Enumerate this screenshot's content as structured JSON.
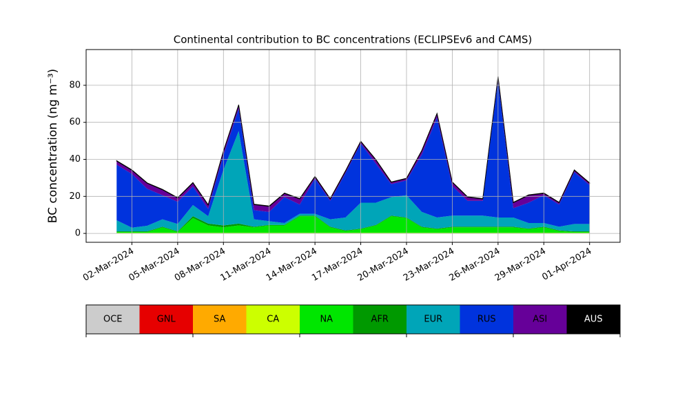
{
  "chart_data": {
    "type": "stacked_area",
    "title": "Continental contribution to BC concentrations (ECLIPSEv6 and CAMS)",
    "y_label": "BC concentration (ng m⁻³)",
    "x": [
      "2024-03-01",
      "2024-03-02",
      "2024-03-03",
      "2024-03-04",
      "2024-03-05",
      "2024-03-06",
      "2024-03-07",
      "2024-03-08",
      "2024-03-09",
      "2024-03-10",
      "2024-03-11",
      "2024-03-12",
      "2024-03-13",
      "2024-03-14",
      "2024-03-15",
      "2024-03-16",
      "2024-03-17",
      "2024-03-18",
      "2024-03-19",
      "2024-03-20",
      "2024-03-21",
      "2024-03-22",
      "2024-03-23",
      "2024-03-24",
      "2024-03-25",
      "2024-03-26",
      "2024-03-27",
      "2024-03-28",
      "2024-03-29",
      "2024-03-30",
      "2024-03-31",
      "2024-04-01"
    ],
    "xlim": [
      "2024-02-28",
      "2024-04-03"
    ],
    "xticks": [
      {
        "value": "2024-03-02",
        "label": "02-Mar-2024"
      },
      {
        "value": "2024-03-05",
        "label": "05-Mar-2024"
      },
      {
        "value": "2024-03-08",
        "label": "08-Mar-2024"
      },
      {
        "value": "2024-03-11",
        "label": "11-Mar-2024"
      },
      {
        "value": "2024-03-14",
        "label": "14-Mar-2024"
      },
      {
        "value": "2024-03-17",
        "label": "17-Mar-2024"
      },
      {
        "value": "2024-03-20",
        "label": "20-Mar-2024"
      },
      {
        "value": "2024-03-23",
        "label": "23-Mar-2024"
      },
      {
        "value": "2024-03-26",
        "label": "26-Mar-2024"
      },
      {
        "value": "2024-03-29",
        "label": "29-Mar-2024"
      },
      {
        "value": "2024-04-01",
        "label": "01-Apr-2024"
      }
    ],
    "ylim": [
      -4.8,
      99.3
    ],
    "yticks": [
      0,
      20,
      40,
      60,
      80
    ],
    "grid": true,
    "series": [
      {
        "name": "OCE",
        "color": "#cccccc",
        "values": [
          0,
          0,
          0,
          0,
          0,
          0,
          0,
          0,
          0,
          0,
          0,
          0,
          0,
          0,
          0,
          0,
          0,
          0,
          0,
          0,
          0,
          0,
          0,
          0,
          0,
          0,
          0,
          0,
          0,
          0,
          0,
          0
        ]
      },
      {
        "name": "GNL",
        "color": "#e60000",
        "values": [
          0,
          0,
          0,
          0,
          0,
          0,
          0,
          0,
          0,
          0,
          0,
          0,
          0,
          0,
          0,
          0,
          0,
          0,
          0,
          0,
          0,
          0,
          0,
          0,
          0,
          0,
          0,
          0,
          0,
          0,
          0,
          0
        ]
      },
      {
        "name": "SA",
        "color": "#ffaa00",
        "values": [
          0.1,
          0.1,
          0.1,
          0.1,
          0.1,
          0.1,
          0.1,
          0.1,
          0.1,
          0.1,
          0.1,
          0.1,
          0.1,
          0.1,
          0.1,
          0.1,
          0.1,
          0.1,
          0.1,
          0.1,
          0.1,
          0.1,
          0.1,
          0.1,
          0.1,
          0.1,
          0.1,
          0.1,
          0.1,
          0.1,
          0.1,
          0.1
        ]
      },
      {
        "name": "CA",
        "color": "#ccff00",
        "values": [
          0.2,
          0.2,
          0.2,
          0.2,
          0.2,
          0.2,
          0.2,
          0.2,
          0.2,
          0.2,
          0.2,
          0.2,
          0.2,
          0.2,
          0.2,
          0.2,
          0.2,
          0.2,
          0.2,
          0.2,
          0.2,
          0.2,
          0.2,
          0.2,
          0.2,
          0.2,
          0.2,
          0.2,
          0.2,
          0.2,
          0.2,
          0.2
        ]
      },
      {
        "name": "NA",
        "color": "#00e600",
        "values": [
          0.5,
          0.5,
          0.5,
          3,
          0.5,
          8,
          4,
          3,
          4,
          3,
          4,
          4,
          9,
          9,
          3,
          1,
          2,
          4,
          9,
          8,
          3,
          2,
          3,
          3,
          3,
          3,
          3,
          2,
          3,
          1,
          0.5,
          0.5
        ]
      },
      {
        "name": "AFR",
        "color": "#009900",
        "values": [
          0.3,
          0.3,
          0.3,
          0.3,
          0.3,
          1,
          1,
          1,
          1,
          0.3,
          0.3,
          0.3,
          0.3,
          0.3,
          0.3,
          0.3,
          0.3,
          0.3,
          0.3,
          0.3,
          0.3,
          0.3,
          0.3,
          0.3,
          0.3,
          0.3,
          0.3,
          0.3,
          0.3,
          0.3,
          0.3,
          0.3
        ]
      },
      {
        "name": "EUR",
        "color": "#00a5b8",
        "values": [
          6,
          2,
          3,
          4,
          4,
          6,
          4,
          30,
          50,
          4,
          2,
          1,
          1,
          1,
          4,
          7,
          14,
          12,
          10,
          12,
          8,
          6,
          6,
          6,
          6,
          5,
          5,
          3,
          2,
          2,
          4,
          4
        ]
      },
      {
        "name": "RUS",
        "color": "#0033dd",
        "values": [
          30,
          29,
          20,
          13,
          12,
          10,
          4,
          8,
          12,
          5,
          5,
          14,
          5,
          19,
          10,
          24,
          32,
          21,
          7,
          8,
          31,
          54,
          16,
          8,
          8,
          74,
          5,
          11,
          15,
          12,
          28,
          21
        ]
      },
      {
        "name": "ASI",
        "color": "#660099",
        "values": [
          2,
          2,
          3,
          3,
          2,
          2,
          2,
          2,
          2,
          3,
          3,
          2,
          3,
          1,
          1,
          1,
          1,
          2,
          1,
          1,
          2,
          2,
          2,
          2,
          1,
          2,
          3,
          4,
          1,
          1,
          1,
          1
        ]
      },
      {
        "name": "AUS",
        "color": "#000000",
        "values": [
          0.2,
          0.2,
          0.2,
          0.2,
          0.2,
          0.2,
          0.2,
          0.2,
          0.2,
          0.2,
          0.2,
          0.2,
          0.2,
          0.2,
          0.2,
          0.2,
          0.2,
          0.2,
          0.2,
          0.2,
          0.2,
          0.2,
          0.2,
          0.2,
          0.2,
          0.2,
          0.2,
          0.2,
          0.2,
          0.2,
          0.2,
          0.2
        ]
      }
    ]
  }
}
